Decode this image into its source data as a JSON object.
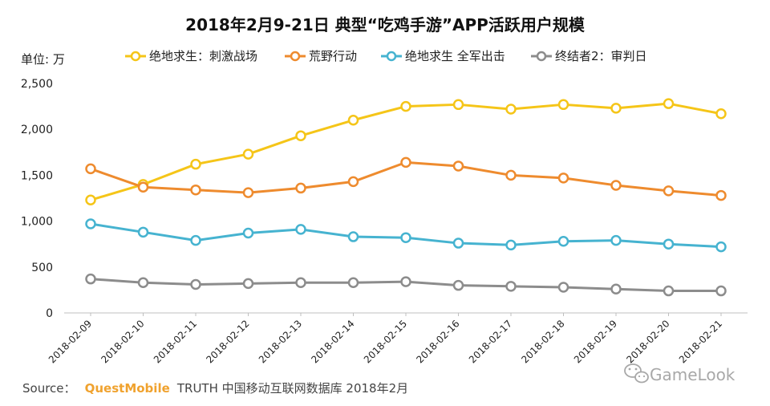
{
  "chart_data": {
    "type": "line",
    "title": "2018年2月9-21日 典型“吃鸡手游”APP活跃用户规模",
    "ylabel": "单位: 万",
    "xlabel": "",
    "ylim": [
      0,
      2500
    ],
    "yticks": [
      "0",
      "500",
      "1,000",
      "1,500",
      "2,000",
      "2,500"
    ],
    "ytick_values": [
      0,
      500,
      1000,
      1500,
      2000,
      2500
    ],
    "grid": false,
    "legend_position": "top",
    "categories": [
      "2018-02-09",
      "2018-02-10",
      "2018-02-11",
      "2018-02-12",
      "2018-02-13",
      "2018-02-14",
      "2018-02-15",
      "2018-02-16",
      "2018-02-17",
      "2018-02-18",
      "2018-02-19",
      "2018-02-20",
      "2018-02-21"
    ],
    "series": [
      {
        "name": "绝地求生：刺激战场",
        "color": "#f5c518",
        "values": [
          1230,
          1400,
          1620,
          1730,
          1930,
          2100,
          2250,
          2270,
          2220,
          2270,
          2230,
          2280,
          2170
        ]
      },
      {
        "name": "荒野行动",
        "color": "#ee8b2e",
        "values": [
          1570,
          1370,
          1340,
          1310,
          1360,
          1430,
          1640,
          1600,
          1500,
          1470,
          1390,
          1330,
          1280
        ]
      },
      {
        "name": "绝地求生 全军出击",
        "color": "#46b3d0",
        "values": [
          970,
          880,
          790,
          870,
          910,
          830,
          820,
          760,
          740,
          780,
          790,
          750,
          720
        ]
      },
      {
        "name": "终结者2：审判日",
        "color": "#8c8c8c",
        "values": [
          370,
          330,
          310,
          320,
          330,
          330,
          340,
          300,
          290,
          280,
          260,
          240,
          240
        ]
      }
    ]
  },
  "source": {
    "prefix": "Source：",
    "brand": "QuestMobile",
    "suffix": "TRUTH 中国移动互联网数据库 2018年2月"
  },
  "watermark": {
    "text": "GameLook",
    "icon": "wechat-icon"
  }
}
